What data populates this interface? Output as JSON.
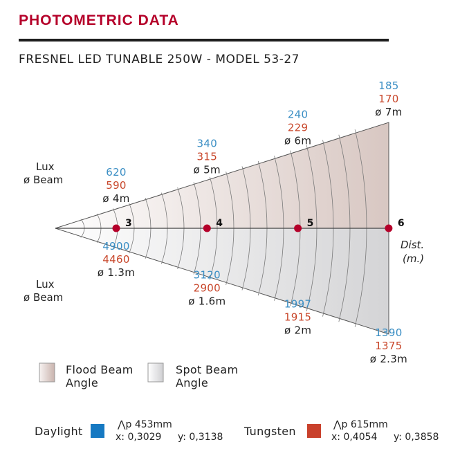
{
  "header": {
    "title": "PHOTOMETRIC DATA",
    "subtitle": "FRESNEL LED TUNABLE 250W - MODEL 53-27"
  },
  "colors": {
    "title": "#b5002a",
    "lux_daylight": "#3a8ec4",
    "lux_tungsten": "#c8462a",
    "marker": "#b5002a",
    "daylight_swatch": "#1679c2",
    "tungsten_swatch": "#c9412c"
  },
  "chart_data": {
    "type": "photometric-beam-diagram",
    "distance_label": [
      "Dist.",
      "(m.)"
    ],
    "row_labels": {
      "flood": [
        "Lux",
        "ø Beam"
      ],
      "spot": [
        "Lux",
        "ø Beam"
      ]
    },
    "distances": [
      3,
      4,
      5,
      6
    ],
    "flood": {
      "name": "Flood Beam Angle",
      "lux_daylight": [
        620,
        340,
        240,
        185
      ],
      "lux_tungsten": [
        590,
        315,
        229,
        170
      ],
      "beam_diameter": [
        "ø 4m",
        "ø 5m",
        "ø 6m",
        "ø 7m"
      ]
    },
    "spot": {
      "name": "Spot Beam Angle",
      "lux_daylight": [
        4900,
        3120,
        1997,
        1390
      ],
      "lux_tungsten": [
        4460,
        2900,
        1915,
        1375
      ],
      "beam_diameter": [
        "ø 1.3m",
        "ø 1.6m",
        "ø 2m",
        "ø 2.3m"
      ]
    }
  },
  "legend": {
    "flood_line1": "Flood Beam",
    "flood_line2": "Angle",
    "spot_line1": "Spot Beam",
    "spot_line2": "Angle"
  },
  "light_types": {
    "daylight": {
      "label": "Daylight",
      "wavelength": "⋀p 453mm",
      "x": "x: 0,3029",
      "y": "y: 0,3138"
    },
    "tungsten": {
      "label": "Tungsten",
      "wavelength": "⋀p 615mm",
      "x": "x: 0,4054",
      "y": "y: 0,3858"
    }
  }
}
